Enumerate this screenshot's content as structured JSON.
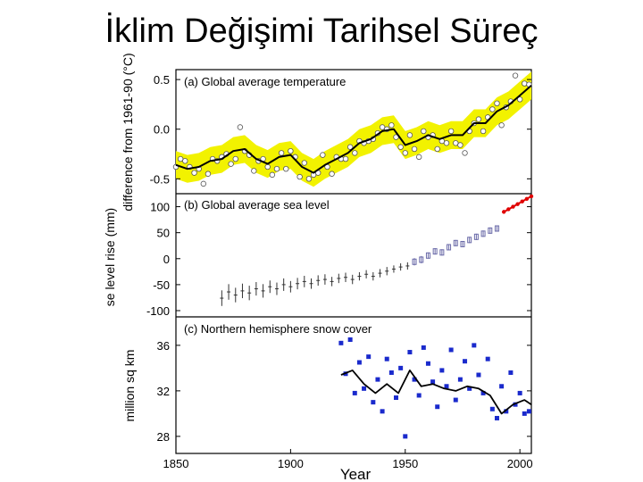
{
  "slide": {
    "title": "İklim Değişimi Tarihsel Süreç"
  },
  "colors": {
    "band": "#f2f200",
    "obs_temp": "#ffffff",
    "smooth": "#000000",
    "sea_early": "#333333",
    "sea_mid": "#6a6aa8",
    "sea_sat": "#e00000",
    "snow": "#1a2acc"
  },
  "chart_data": [
    {
      "type": "line",
      "panel": "a",
      "title": "(a) Global average temperature",
      "ylabel": "difference from 1961-90 (°C)",
      "xlim": [
        1850,
        2005
      ],
      "ylim": [
        -0.65,
        0.6
      ],
      "yticks": [
        -0.5,
        0.0,
        0.5
      ],
      "ytick_labels": [
        "-0.5",
        "0.0",
        "0.5"
      ],
      "grid": false,
      "series": [
        {
          "role": "observed-annual",
          "x": [
            1850,
            1852,
            1854,
            1856,
            1858,
            1860,
            1862,
            1864,
            1866,
            1868,
            1870,
            1872,
            1874,
            1876,
            1878,
            1880,
            1882,
            1884,
            1886,
            1888,
            1890,
            1892,
            1894,
            1896,
            1898,
            1900,
            1902,
            1904,
            1906,
            1908,
            1910,
            1912,
            1914,
            1916,
            1918,
            1920,
            1922,
            1924,
            1926,
            1928,
            1930,
            1932,
            1934,
            1936,
            1938,
            1940,
            1942,
            1944,
            1946,
            1948,
            1950,
            1952,
            1954,
            1956,
            1958,
            1960,
            1962,
            1964,
            1966,
            1968,
            1970,
            1972,
            1974,
            1976,
            1978,
            1980,
            1982,
            1984,
            1986,
            1988,
            1990,
            1992,
            1994,
            1996,
            1998,
            2000,
            2002,
            2004
          ],
          "y": [
            -0.38,
            -0.3,
            -0.32,
            -0.38,
            -0.44,
            -0.4,
            -0.55,
            -0.45,
            -0.3,
            -0.32,
            -0.28,
            -0.25,
            -0.35,
            -0.3,
            0.02,
            -0.22,
            -0.26,
            -0.42,
            -0.32,
            -0.3,
            -0.38,
            -0.46,
            -0.4,
            -0.24,
            -0.4,
            -0.22,
            -0.28,
            -0.48,
            -0.34,
            -0.5,
            -0.46,
            -0.44,
            -0.26,
            -0.38,
            -0.45,
            -0.28,
            -0.3,
            -0.3,
            -0.18,
            -0.24,
            -0.12,
            -0.14,
            -0.12,
            -0.1,
            -0.04,
            0.02,
            0.0,
            0.04,
            -0.08,
            -0.18,
            -0.24,
            -0.06,
            -0.2,
            -0.28,
            -0.02,
            -0.08,
            -0.06,
            -0.2,
            -0.12,
            -0.14,
            -0.02,
            -0.14,
            -0.16,
            -0.24,
            -0.02,
            0.06,
            0.1,
            -0.02,
            0.12,
            0.2,
            0.26,
            0.04,
            0.22,
            0.28,
            0.54,
            0.3,
            0.46,
            0.45
          ]
        },
        {
          "role": "smoothed",
          "x": [
            1850,
            1855,
            1860,
            1865,
            1870,
            1875,
            1880,
            1885,
            1890,
            1895,
            1900,
            1905,
            1910,
            1915,
            1920,
            1925,
            1930,
            1935,
            1940,
            1945,
            1950,
            1955,
            1960,
            1965,
            1970,
            1975,
            1980,
            1985,
            1990,
            1995,
            2000,
            2005
          ],
          "y": [
            -0.36,
            -0.4,
            -0.38,
            -0.32,
            -0.3,
            -0.22,
            -0.2,
            -0.3,
            -0.35,
            -0.28,
            -0.26,
            -0.38,
            -0.44,
            -0.36,
            -0.3,
            -0.24,
            -0.14,
            -0.1,
            -0.02,
            0.0,
            -0.16,
            -0.12,
            -0.06,
            -0.1,
            -0.06,
            -0.06,
            0.06,
            0.06,
            0.18,
            0.24,
            0.34,
            0.44
          ]
        }
      ]
    },
    {
      "type": "scatter",
      "panel": "b",
      "title": "(b) Global average sea level",
      "ylabel": "se level rise (mm)",
      "xlim": [
        1850,
        2005
      ],
      "ylim": [
        -112,
        125
      ],
      "yticks": [
        -100,
        -50,
        0,
        50,
        100
      ],
      "ytick_labels": [
        "-100",
        "-50",
        "0",
        "50",
        "100"
      ],
      "grid": false,
      "series": [
        {
          "role": "tide-gauge-early",
          "x": [
            1870,
            1873,
            1876,
            1879,
            1882,
            1885,
            1888,
            1891,
            1894,
            1897,
            1900,
            1903,
            1906,
            1909,
            1912,
            1915,
            1918,
            1921,
            1924,
            1927,
            1930,
            1933,
            1936,
            1939,
            1942,
            1945,
            1948,
            1951
          ],
          "y": [
            -76,
            -64,
            -70,
            -62,
            -66,
            -58,
            -62,
            -54,
            -58,
            -50,
            -54,
            -48,
            -44,
            -48,
            -42,
            -40,
            -44,
            -38,
            -36,
            -40,
            -34,
            -30,
            -34,
            -28,
            -24,
            -20,
            -16,
            -14
          ],
          "err": [
            15,
            15,
            14,
            14,
            14,
            13,
            13,
            12,
            12,
            12,
            11,
            11,
            11,
            10,
            10,
            10,
            9,
            9,
            9,
            9,
            8,
            8,
            8,
            8,
            8,
            7,
            7,
            7
          ]
        },
        {
          "role": "tide-gauge-late",
          "x": [
            1954,
            1957,
            1960,
            1963,
            1966,
            1969,
            1972,
            1975,
            1978,
            1981,
            1984,
            1987,
            1990
          ],
          "y": [
            -6,
            -2,
            6,
            14,
            12,
            22,
            30,
            28,
            36,
            42,
            48,
            54,
            58
          ],
          "err": [
            7,
            7,
            6,
            6,
            6,
            6,
            6,
            6,
            6,
            6,
            6,
            6,
            6
          ]
        },
        {
          "role": "satellite",
          "x": [
            1993,
            1995,
            1997,
            1999,
            2001,
            2003,
            2005
          ],
          "y": [
            90,
            95,
            100,
            105,
            110,
            115,
            120
          ]
        }
      ]
    },
    {
      "type": "scatter",
      "panel": "c",
      "title": "(c) Northern hemisphere snow cover",
      "ylabel": "million sq km",
      "xlabel": "Year",
      "xlim": [
        1850,
        2005
      ],
      "ylim": [
        26.5,
        38.5
      ],
      "yticks": [
        28,
        32,
        36
      ],
      "ytick_labels": [
        "28",
        "32",
        "36"
      ],
      "xticks": [
        1850,
        1900,
        1950,
        2000
      ],
      "xtick_labels": [
        "1850",
        "1900",
        "1950",
        "2000"
      ],
      "grid": false,
      "series": [
        {
          "role": "observed-annual",
          "x": [
            1922,
            1924,
            1926,
            1928,
            1930,
            1932,
            1934,
            1936,
            1938,
            1940,
            1942,
            1944,
            1946,
            1948,
            1950,
            1952,
            1954,
            1956,
            1958,
            1960,
            1962,
            1964,
            1966,
            1968,
            1970,
            1972,
            1974,
            1976,
            1978,
            1980,
            1982,
            1984,
            1986,
            1988,
            1990,
            1992,
            1994,
            1996,
            1998,
            2000,
            2002,
            2004
          ],
          "y": [
            36.2,
            33.5,
            36.5,
            31.8,
            34.5,
            32.2,
            35.0,
            31.0,
            33.0,
            30.2,
            34.8,
            33.6,
            31.4,
            34.0,
            28.0,
            35.4,
            33.0,
            31.6,
            35.8,
            34.4,
            32.8,
            30.6,
            33.8,
            32.4,
            35.6,
            31.2,
            33.0,
            34.6,
            32.2,
            36.0,
            33.4,
            31.8,
            34.8,
            30.4,
            29.6,
            32.4,
            30.2,
            33.6,
            30.8,
            31.8,
            30.0,
            30.2
          ]
        },
        {
          "role": "smoothed",
          "x": [
            1922,
            1927,
            1932,
            1937,
            1942,
            1947,
            1952,
            1957,
            1962,
            1967,
            1972,
            1977,
            1982,
            1987,
            1992,
            1997,
            2002,
            2005
          ],
          "y": [
            33.4,
            33.8,
            32.6,
            31.8,
            32.6,
            31.8,
            33.8,
            32.4,
            32.6,
            32.2,
            32.0,
            32.4,
            32.2,
            31.6,
            30.0,
            30.8,
            31.2,
            30.8
          ]
        }
      ]
    }
  ]
}
